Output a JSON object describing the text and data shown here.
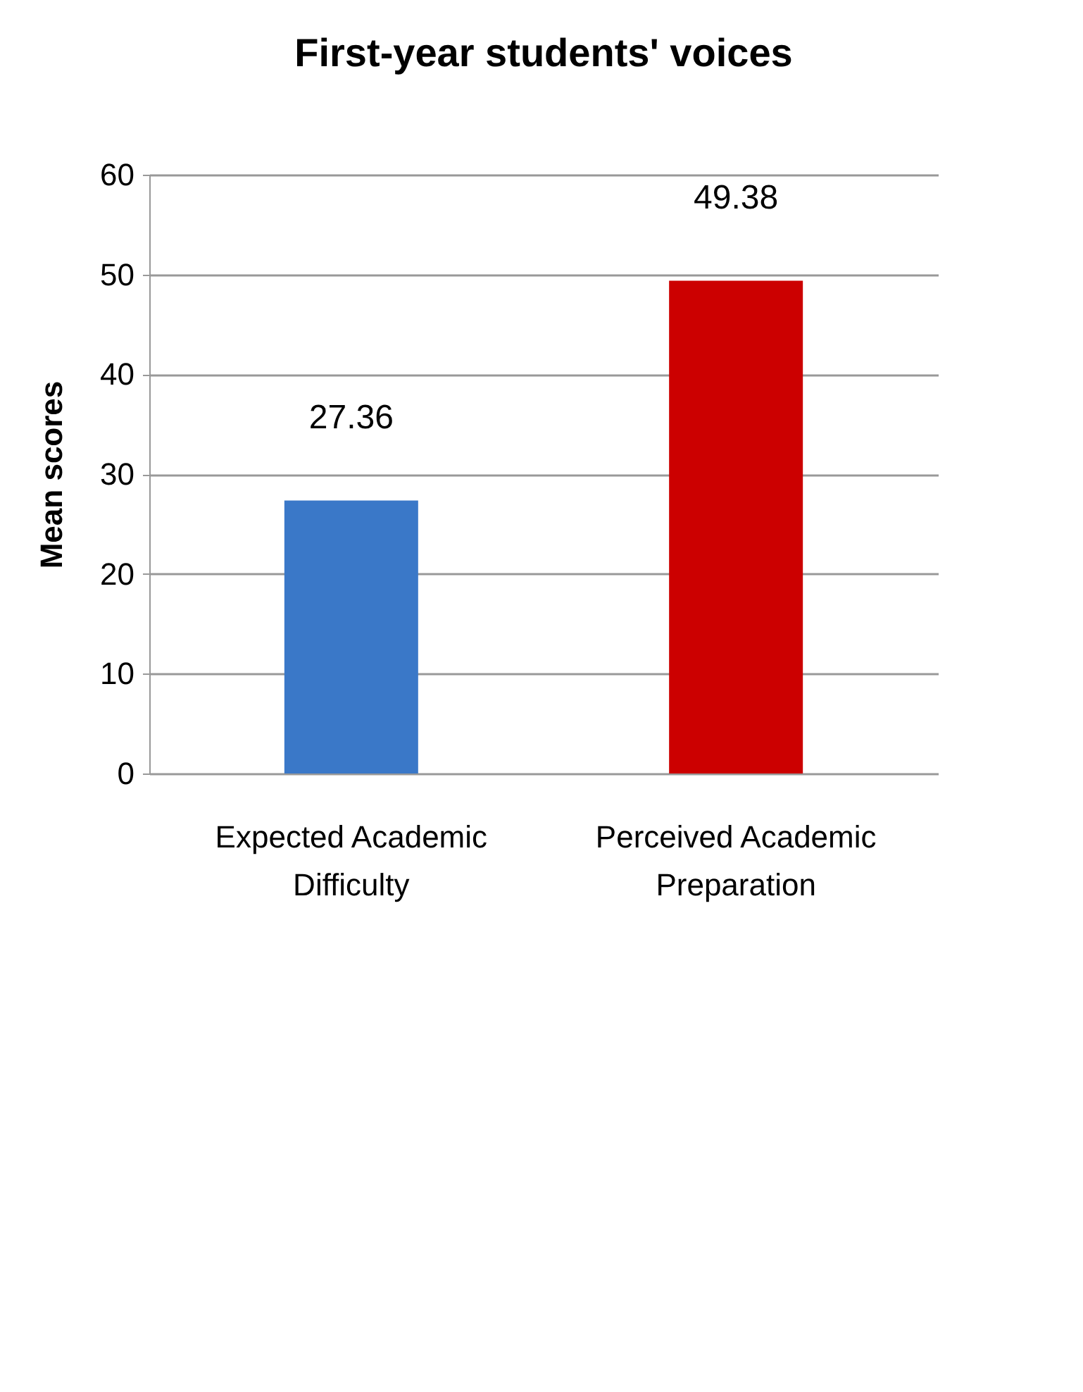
{
  "chart_data": {
    "type": "bar",
    "title": "First-year students' voices",
    "ylabel": "Mean scores",
    "categories": [
      "Expected Academic Difficulty",
      "Perceived Academic Preparation"
    ],
    "values": [
      27.36,
      49.38
    ],
    "colors": [
      "#3a78c8",
      "#cc0000"
    ],
    "ylim": [
      0,
      60
    ],
    "yticks": [
      0,
      10,
      20,
      30,
      40,
      50,
      60
    ],
    "grid": "y",
    "data_labels": true,
    "legend": false
  }
}
